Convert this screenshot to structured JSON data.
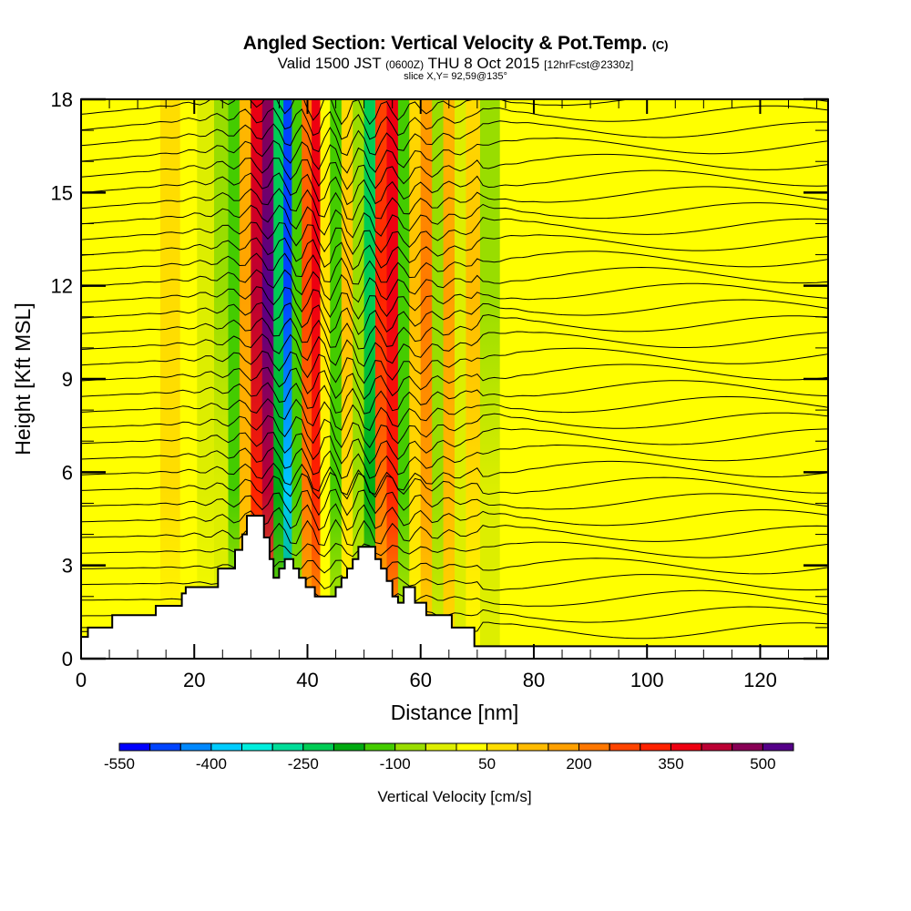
{
  "title": {
    "main": "Angled Section: Vertical Velocity & Pot.Temp.",
    "main_suffix": "(C)",
    "valid_prefix": "Valid 1500 JST",
    "valid_utc": "(0600Z)",
    "valid_date": "THU 8 Oct 2015",
    "forecast": "[12hrFcst@2330z]",
    "slice": "slice X,Y= 92,59@135°"
  },
  "colors": {
    "terrain": "#ffffff",
    "frame": "#000000",
    "contour": "#000000"
  },
  "chart_data": {
    "type": "heatmap",
    "title": "Angled Section: Vertical Velocity & Pot.Temp.",
    "xlabel": "Distance [nm]",
    "ylabel": "Height [Kft MSL]",
    "xlim": [
      0,
      132
    ],
    "ylim": [
      0,
      18
    ],
    "xticks": [
      0,
      20,
      40,
      60,
      80,
      100,
      120
    ],
    "xtick_labels": [
      "0",
      "20",
      "40",
      "60",
      "80",
      "100",
      "120"
    ],
    "xminor_step": 5,
    "yticks": [
      0,
      3,
      6,
      9,
      12,
      15,
      18
    ],
    "ytick_labels": [
      "0",
      "3",
      "6",
      "9",
      "12",
      "15",
      "18"
    ],
    "yminor_step": 1,
    "grid": false,
    "colorbar": {
      "title": "Vertical Velocity [cm/s]",
      "placement": "bottom",
      "tick_values": [
        -550,
        -400,
        -250,
        -100,
        50,
        200,
        350,
        500
      ],
      "tick_labels": [
        "-550",
        "-400",
        "-250",
        "-100",
        "50",
        "200",
        "350",
        "500"
      ],
      "bin_edges_start": -550,
      "bin_width": 50,
      "colors": [
        "#0000ff",
        "#0044ff",
        "#0088ff",
        "#00ccff",
        "#00eedd",
        "#00dd99",
        "#00cc55",
        "#00aa11",
        "#44cc00",
        "#99dd00",
        "#ddee00",
        "#ffff00",
        "#ffdd00",
        "#ffbb00",
        "#ffa000",
        "#ff7700",
        "#ff4400",
        "#ff2200",
        "#ee0011",
        "#bb0033",
        "#880055",
        "#550088"
      ]
    },
    "velocity_columns_description_units": "cm/s",
    "velocity_columns": [
      {
        "x": 0,
        "v": 25
      },
      {
        "x": 4,
        "v": 30
      },
      {
        "x": 8,
        "v": 0
      },
      {
        "x": 12,
        "v": 10
      },
      {
        "x": 16,
        "v": 70
      },
      {
        "x": 19,
        "v": 0
      },
      {
        "x": 22,
        "v": -30
      },
      {
        "x": 25,
        "v": -60
      },
      {
        "x": 27,
        "v": -150
      },
      {
        "x": 29,
        "v": 150
      },
      {
        "x": 31,
        "v": 400
      },
      {
        "x": 33,
        "v": 520
      },
      {
        "x": 35,
        "v": -250
      },
      {
        "x": 36.5,
        "v": -500
      },
      {
        "x": 38,
        "v": -150
      },
      {
        "x": 40,
        "v": 250
      },
      {
        "x": 41.5,
        "v": 380
      },
      {
        "x": 43,
        "v": 50
      },
      {
        "x": 45,
        "v": -150
      },
      {
        "x": 47,
        "v": 100
      },
      {
        "x": 49,
        "v": -100
      },
      {
        "x": 51,
        "v": -250
      },
      {
        "x": 53,
        "v": 300
      },
      {
        "x": 55,
        "v": 380
      },
      {
        "x": 57,
        "v": -150
      },
      {
        "x": 59,
        "v": 100
      },
      {
        "x": 61,
        "v": 200
      },
      {
        "x": 63,
        "v": -80
      },
      {
        "x": 65,
        "v": 150
      },
      {
        "x": 67,
        "v": -50
      },
      {
        "x": 69,
        "v": 100
      },
      {
        "x": 72,
        "v": -60
      },
      {
        "x": 76,
        "v": 30
      },
      {
        "x": 80,
        "v": 0
      },
      {
        "x": 86,
        "v": 30
      },
      {
        "x": 92,
        "v": 10
      },
      {
        "x": 98,
        "v": 40
      },
      {
        "x": 104,
        "v": 20
      },
      {
        "x": 110,
        "v": 45
      },
      {
        "x": 116,
        "v": 20
      },
      {
        "x": 122,
        "v": 45
      },
      {
        "x": 128,
        "v": 20
      },
      {
        "x": 132,
        "v": 45
      }
    ],
    "terrain_kft": [
      {
        "x": 0,
        "h": 0.7
      },
      {
        "x": 1.2,
        "h": 1.0
      },
      {
        "x": 5.5,
        "h": 1.4
      },
      {
        "x": 12.5,
        "h": 1.4
      },
      {
        "x": 12.8,
        "h": 1.4
      },
      {
        "x": 13.2,
        "h": 1.7
      },
      {
        "x": 17.5,
        "h": 1.7
      },
      {
        "x": 17.8,
        "h": 2.1
      },
      {
        "x": 18.5,
        "h": 2.3
      },
      {
        "x": 23.5,
        "h": 2.3
      },
      {
        "x": 24.2,
        "h": 2.9
      },
      {
        "x": 26.6,
        "h": 2.9
      },
      {
        "x": 27.2,
        "h": 3.5
      },
      {
        "x": 28.5,
        "h": 4.0
      },
      {
        "x": 29.3,
        "h": 4.6
      },
      {
        "x": 31.6,
        "h": 4.6
      },
      {
        "x": 32.3,
        "h": 3.9
      },
      {
        "x": 33.3,
        "h": 3.2
      },
      {
        "x": 34.0,
        "h": 2.6
      },
      {
        "x": 35.0,
        "h": 2.9
      },
      {
        "x": 36.0,
        "h": 3.2
      },
      {
        "x": 37.5,
        "h": 2.9
      },
      {
        "x": 38.5,
        "h": 2.6
      },
      {
        "x": 39.7,
        "h": 2.3
      },
      {
        "x": 41.3,
        "h": 2.0
      },
      {
        "x": 44.0,
        "h": 2.0
      },
      {
        "x": 45.0,
        "h": 2.3
      },
      {
        "x": 46.0,
        "h": 2.6
      },
      {
        "x": 47.0,
        "h": 2.9
      },
      {
        "x": 48.0,
        "h": 3.2
      },
      {
        "x": 49.0,
        "h": 3.6
      },
      {
        "x": 51.0,
        "h": 3.6
      },
      {
        "x": 52.0,
        "h": 3.2
      },
      {
        "x": 53.0,
        "h": 2.9
      },
      {
        "x": 54.0,
        "h": 2.5
      },
      {
        "x": 55.0,
        "h": 2.0
      },
      {
        "x": 56.0,
        "h": 1.8
      },
      {
        "x": 57.0,
        "h": 2.3
      },
      {
        "x": 58.0,
        "h": 2.3
      },
      {
        "x": 59.0,
        "h": 1.8
      },
      {
        "x": 61.0,
        "h": 1.4
      },
      {
        "x": 64.0,
        "h": 1.4
      },
      {
        "x": 65.5,
        "h": 1.0
      },
      {
        "x": 68.5,
        "h": 1.0
      },
      {
        "x": 69.5,
        "h": 0.4
      },
      {
        "x": 132,
        "h": 0.4
      }
    ]
  }
}
